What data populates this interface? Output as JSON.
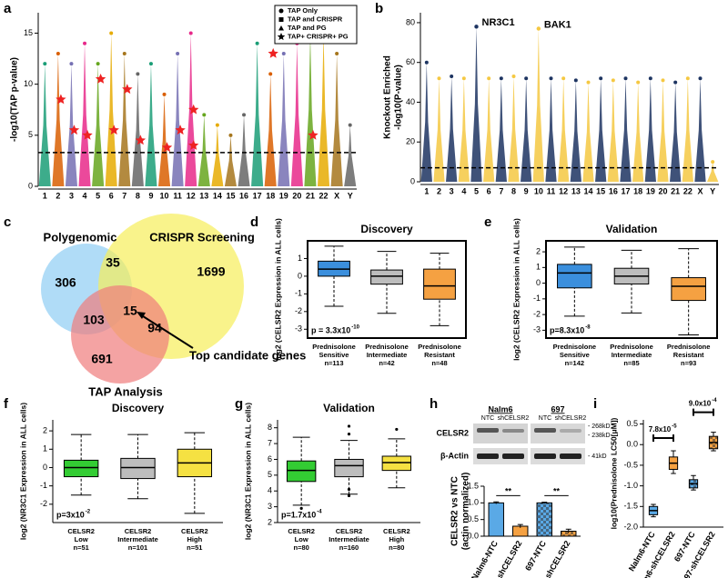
{
  "chart_data": [
    {
      "panel": "a",
      "type": "manhattan",
      "ylabel_lines": [
        "-log10(TAP p-value)"
      ],
      "categories": [
        "1",
        "2",
        "3",
        "4",
        "5",
        "6",
        "7",
        "8",
        "9",
        "10",
        "11",
        "12",
        "13",
        "14",
        "15",
        "16",
        "17",
        "18",
        "19",
        "20",
        "21",
        "22",
        "X",
        "Y"
      ],
      "values": [
        12,
        13,
        12,
        14,
        12,
        15,
        13,
        11,
        12,
        9,
        13,
        15,
        7,
        6,
        5,
        7,
        14,
        11,
        13,
        14,
        15,
        15,
        13,
        6
      ],
      "colors": [
        "#1b9e77",
        "#d95f02",
        "#7570b3",
        "#e7298a",
        "#66a61e",
        "#e6ab02",
        "#a6761d",
        "#666666"
      ],
      "ylim": [
        0,
        17
      ],
      "yticks": [
        0,
        5,
        10,
        15
      ],
      "threshold": 3.3,
      "stars": {
        "x": [
          "2",
          "3",
          "4",
          "5",
          "6",
          "7",
          "8",
          "10",
          "11",
          "12",
          "12",
          "18",
          "21"
        ],
        "values": [
          8.5,
          5.5,
          5,
          10.5,
          5.5,
          9.5,
          4.5,
          3.8,
          5.5,
          7.5,
          4,
          13,
          5
        ],
        "color": "#ee2222"
      },
      "legend": [
        {
          "name": "TAP Only",
          "marker": "circle"
        },
        {
          "name": "TAP and CRISPR",
          "marker": "square"
        },
        {
          "name": "TAP and PG",
          "marker": "triangle"
        },
        {
          "name": "TAP+ CRISPR+ PG",
          "marker": "star"
        }
      ]
    },
    {
      "panel": "b",
      "type": "manhattan",
      "ylabel_lines": [
        "Knockout Enriched",
        "-log10(P-value)"
      ],
      "categories": [
        "1",
        "2",
        "3",
        "4",
        "5",
        "6",
        "7",
        "8",
        "9",
        "10",
        "11",
        "12",
        "13",
        "14",
        "15",
        "16",
        "17",
        "18",
        "19",
        "20",
        "21",
        "22",
        "X",
        "Y"
      ],
      "values": [
        60,
        52,
        53,
        52,
        78,
        52,
        52,
        53,
        52,
        77,
        52,
        52,
        51,
        50,
        52,
        51,
        52,
        50,
        52,
        51,
        50,
        52,
        52,
        10
      ],
      "colors": [
        "#1d3461",
        "#f5c842"
      ],
      "ylim": [
        0,
        85
      ],
      "yticks": [
        0,
        20,
        40,
        60,
        80
      ],
      "threshold": 7,
      "annotations": [
        {
          "text": "NR3C1",
          "x": "5",
          "y": 78
        },
        {
          "text": "BAK1",
          "x": "10",
          "y": 77
        }
      ]
    },
    {
      "panel": "c",
      "type": "venn",
      "sets": [
        {
          "name": "Polygenomic",
          "color": "#8ecdf3"
        },
        {
          "name": "CRISPR Screening",
          "color": "#f6ee5a"
        },
        {
          "name": "TAP Analysis",
          "color": "#f07c7c"
        }
      ],
      "regions": [
        306,
        35,
        1699,
        103,
        15,
        94,
        691
      ],
      "annotation": "Top candidate genes"
    },
    {
      "panel": "d",
      "type": "box",
      "title": "Discovery",
      "ylabel": "log2 (CELSR2 Expression in ALL cells)",
      "category_lines": [
        [
          "Prednisolone",
          "Sensitive"
        ],
        [
          "Prednisolone",
          "Intermediate"
        ],
        [
          "Prednisolone",
          "Resistant"
        ]
      ],
      "n_labels": [
        "n=113",
        "n=42",
        "n=48"
      ],
      "colors": [
        "#3b8fdd",
        "#bdbdbd",
        "#f5a142"
      ],
      "boxes": [
        {
          "low": -1.7,
          "q1": 0,
          "median": 0.4,
          "q3": 0.85,
          "high": 1.7
        },
        {
          "low": -2.1,
          "q1": -0.45,
          "median": 0,
          "q3": 0.35,
          "high": 1.4
        },
        {
          "low": -2.8,
          "q1": -1.3,
          "median": -0.55,
          "q3": 0.4,
          "high": 1.3
        }
      ],
      "ylim": [
        -3.5,
        2
      ],
      "yticks": [
        -3,
        -2,
        -1,
        0,
        1
      ],
      "p_text": "p = 3.3x10",
      "p_exp": "-10"
    },
    {
      "panel": "e",
      "type": "box",
      "title": "Validation",
      "ylabel": "log2 (CELSR2 Expression in ALL cells)",
      "category_lines": [
        [
          "Prednisolone",
          "Sensitive"
        ],
        [
          "Prednisolone",
          "Intermediate"
        ],
        [
          "Prednisolone",
          "Resistant"
        ]
      ],
      "n_labels": [
        "n=142",
        "n=85",
        "n=93"
      ],
      "colors": [
        "#3b8fdd",
        "#bdbdbd",
        "#f5a142"
      ],
      "boxes": [
        {
          "low": -2.1,
          "q1": -0.3,
          "median": 0.65,
          "q3": 1.2,
          "high": 2.3
        },
        {
          "low": -1.9,
          "q1": -0.05,
          "median": 0.45,
          "q3": 0.95,
          "high": 2.1
        },
        {
          "low": -3.3,
          "q1": -1.1,
          "median": -0.2,
          "q3": 0.35,
          "high": 2.2
        }
      ],
      "ylim": [
        -3.5,
        2.7
      ],
      "yticks": [
        -3,
        -2,
        -1,
        0,
        1,
        2
      ],
      "p_text": "p=8.3x10",
      "p_exp": "-8"
    },
    {
      "panel": "f",
      "type": "box",
      "title": "Discovery",
      "ylabel": "log2 (NR3C1 Expression in ALL cells)",
      "category_lines": [
        [
          "CELSR2",
          "Low"
        ],
        [
          "CELSR2",
          "Intermediate"
        ],
        [
          "CELSR2",
          "High"
        ]
      ],
      "n_labels": [
        "n=51",
        "n=101",
        "n=51"
      ],
      "colors": [
        "#33cc33",
        "#bdbdbd",
        "#f5e142"
      ],
      "boxes": [
        {
          "low": -1.5,
          "q1": -0.5,
          "median": 0,
          "q3": 0.4,
          "high": 1.8
        },
        {
          "low": -1.7,
          "q1": -0.6,
          "median": 0,
          "q3": 0.5,
          "high": 1.8
        },
        {
          "low": -2.5,
          "q1": -0.5,
          "median": 0.25,
          "q3": 1.0,
          "high": 1.9
        }
      ],
      "ylim": [
        -3,
        2.6
      ],
      "yticks": [
        -2,
        -1,
        0,
        1,
        2
      ],
      "p_text": "p=3x10",
      "p_exp": "-2"
    },
    {
      "panel": "g",
      "type": "box",
      "title": "Validation",
      "ylabel": "log2 (NR3C1 Expression in ALL cells)",
      "category_lines": [
        [
          "CELSR2",
          "Low"
        ],
        [
          "CELSR2",
          "Intermediate"
        ],
        [
          "CELSR2",
          "High"
        ]
      ],
      "n_labels": [
        "n=80",
        "n=160",
        "n=80"
      ],
      "colors": [
        "#33cc33",
        "#bdbdbd",
        "#f5e142"
      ],
      "boxes": [
        {
          "low": 3.1,
          "q1": 4.6,
          "median": 5.3,
          "q3": 5.9,
          "high": 7.4,
          "outliers": [
            2.9
          ]
        },
        {
          "low": 3.8,
          "q1": 4.9,
          "median": 5.6,
          "q3": 6.0,
          "high": 7.2,
          "outliers": [
            8.1,
            7.6,
            4.1,
            3.7
          ]
        },
        {
          "low": 4.2,
          "q1": 5.3,
          "median": 5.8,
          "q3": 6.2,
          "high": 7.3,
          "outliers": [
            7.9
          ]
        }
      ],
      "ylim": [
        2,
        8.5
      ],
      "yticks": [
        2,
        3,
        4,
        5,
        6,
        7,
        8
      ],
      "p_text": "p=1.7x10",
      "p_exp": "-4"
    },
    {
      "panel": "h",
      "type": "bar",
      "ylabel_lines": [
        "CELSR2 vs NTC",
        "(actin normalized)"
      ],
      "blot": {
        "lane_groups": [
          "Nalm6",
          "697"
        ],
        "lanes": [
          "NTC",
          "shCELSR2",
          "NTC",
          "shCELSR2"
        ],
        "proteins": [
          "CELSR2",
          "β-Actin"
        ],
        "sizes": [
          "- 268kD",
          "- 238kD",
          "- 41kD"
        ]
      },
      "categories": [
        "Nalm6-NTC",
        "Nalm6-shCELSR2",
        "697-NTC",
        "697-shCELSR2"
      ],
      "values": [
        1.0,
        0.3,
        1.0,
        0.15
      ],
      "errors": [
        0.03,
        0.05,
        0.02,
        0.06
      ],
      "colors": [
        "#5aa9e6",
        "#f5a142",
        "#5aa9e6",
        "#f5a142"
      ],
      "hatched": [
        false,
        false,
        true,
        true
      ],
      "ylim": [
        0,
        1.5
      ],
      "yticks": [
        {
          "value": 0,
          "label": "0.0"
        },
        0.5,
        {
          "value": 1,
          "label": "1.0"
        },
        1.5
      ],
      "significance": [
        "**",
        "**"
      ]
    },
    {
      "panel": "i",
      "type": "box",
      "ylabel": "log10(Prednisolone LC50[μM])",
      "whisker_style": "solid",
      "categories": [
        "Nalm6-NTC",
        "Nalm6-shCELSR2",
        "697-NTC",
        "697-shCELSR2"
      ],
      "colors": [
        "#5aa9e6",
        "#f5a142",
        "#5aa9e6",
        "#f5a142"
      ],
      "hatched": [
        false,
        false,
        true,
        true
      ],
      "boxes": [
        {
          "low": -1.75,
          "q1": -1.7,
          "median": -1.6,
          "q3": -1.5,
          "high": -1.45
        },
        {
          "low": -0.7,
          "q1": -0.6,
          "median": -0.45,
          "q3": -0.3,
          "high": -0.15
        },
        {
          "low": -1.1,
          "q1": -1.05,
          "median": -0.95,
          "q3": -0.85,
          "high": -0.75
        },
        {
          "low": -0.15,
          "q1": -0.1,
          "median": 0.05,
          "q3": 0.2,
          "high": 0.3
        }
      ],
      "ylim": [
        -2,
        0.6
      ],
      "yticks": [
        {
          "value": -2,
          "label": "-2.0"
        },
        -1.5,
        {
          "value": -1,
          "label": "-1.0"
        },
        -0.5,
        {
          "value": 0,
          "label": "0.0"
        },
        0.5
      ],
      "p_values": [
        {
          "text": "7.8x10",
          "exp": "-5"
        },
        {
          "text": "9.0x10",
          "exp": "-4"
        }
      ]
    }
  ]
}
